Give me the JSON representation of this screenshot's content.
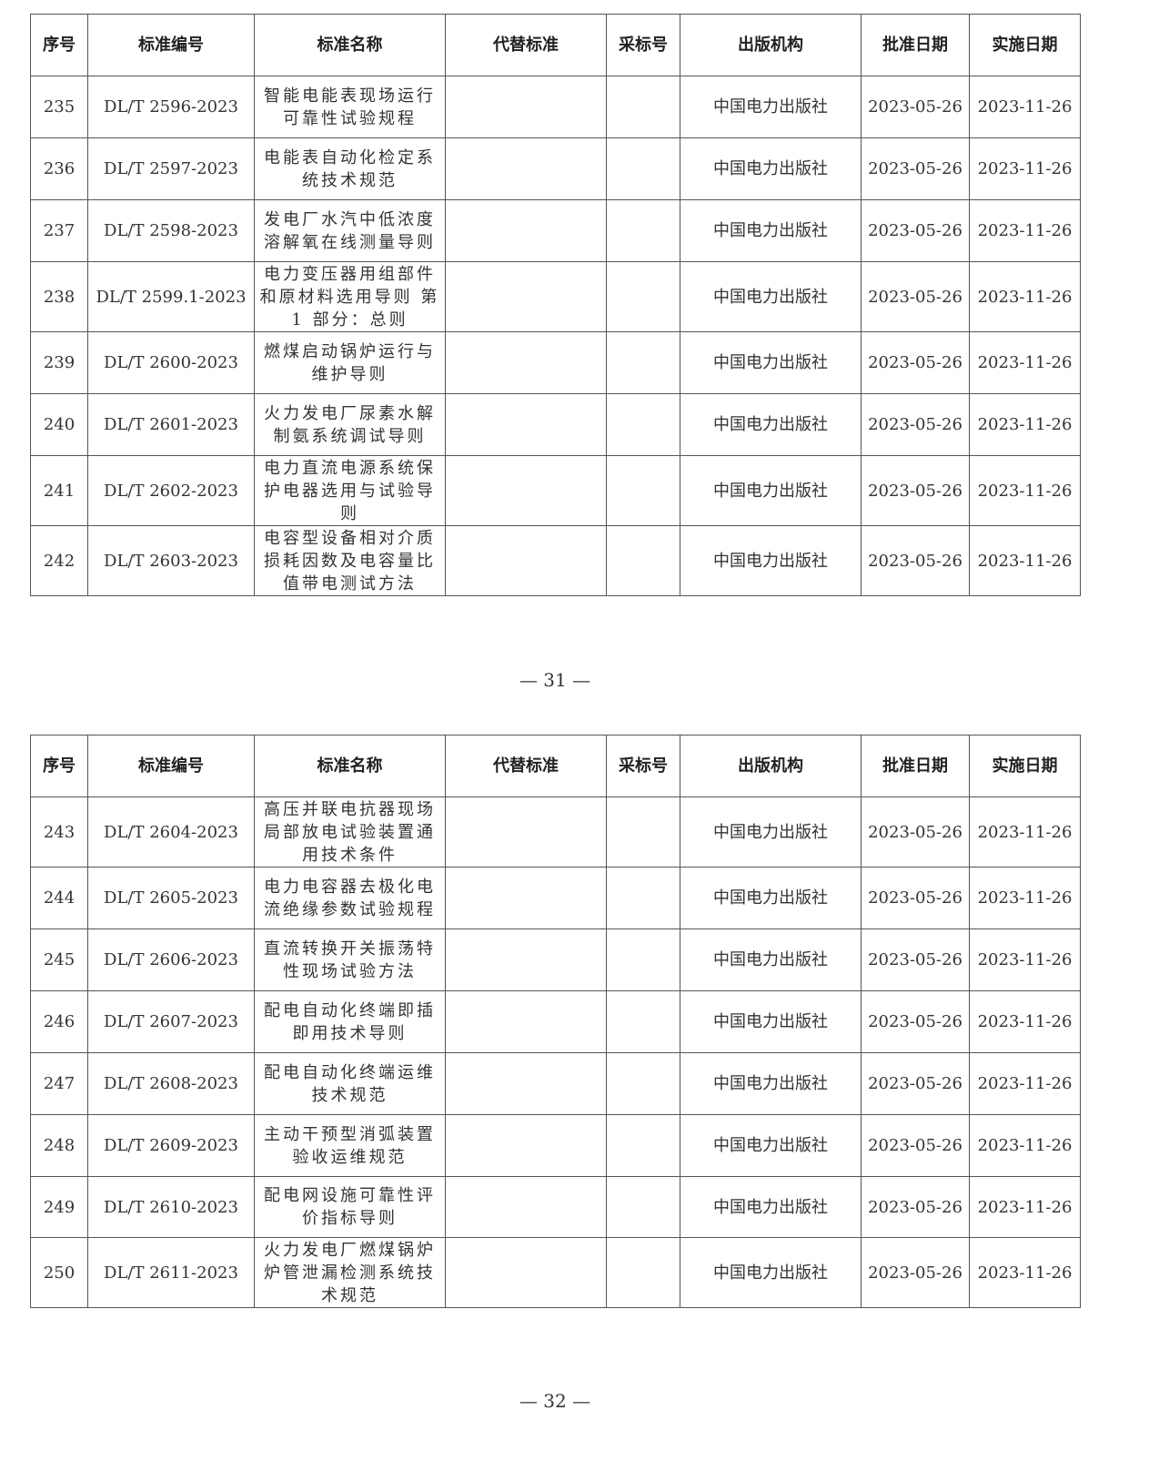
{
  "headers": [
    "序号",
    "标准编号",
    "标准名称",
    "代替标准",
    "采标号",
    "出版机构",
    "批准日期",
    "实施日期"
  ],
  "pages": [
    {
      "page_number": "— 31 —",
      "rows": [
        {
          "no": "235",
          "code": "DL/T 2596-2023",
          "name": "智能电能表现场运行\n可靠性试验规程",
          "replaces": "",
          "adopted": "",
          "publisher": "中国电力出版社",
          "approved": "2023-05-26",
          "effective": "2023-11-26"
        },
        {
          "no": "236",
          "code": "DL/T 2597-2023",
          "name": "电能表自动化检定系\n统技术规范",
          "replaces": "",
          "adopted": "",
          "publisher": "中国电力出版社",
          "approved": "2023-05-26",
          "effective": "2023-11-26"
        },
        {
          "no": "237",
          "code": "DL/T 2598-2023",
          "name": "发电厂水汽中低浓度\n溶解氧在线测量导则",
          "replaces": "",
          "adopted": "",
          "publisher": "中国电力出版社",
          "approved": "2023-05-26",
          "effective": "2023-11-26"
        },
        {
          "no": "238",
          "code": "DL/T 2599.1-2023",
          "name": "电力变压器用组部件\n和原材料选用导则 第\n1 部分：总则",
          "replaces": "",
          "adopted": "",
          "publisher": "中国电力出版社",
          "approved": "2023-05-26",
          "effective": "2023-11-26"
        },
        {
          "no": "239",
          "code": "DL/T 2600-2023",
          "name": "燃煤启动锅炉运行与\n维护导则",
          "replaces": "",
          "adopted": "",
          "publisher": "中国电力出版社",
          "approved": "2023-05-26",
          "effective": "2023-11-26"
        },
        {
          "no": "240",
          "code": "DL/T 2601-2023",
          "name": "火力发电厂尿素水解\n制氨系统调试导则",
          "replaces": "",
          "adopted": "",
          "publisher": "中国电力出版社",
          "approved": "2023-05-26",
          "effective": "2023-11-26"
        },
        {
          "no": "241",
          "code": "DL/T 2602-2023",
          "name": "电力直流电源系统保\n护电器选用与试验导\n则",
          "replaces": "",
          "adopted": "",
          "publisher": "中国电力出版社",
          "approved": "2023-05-26",
          "effective": "2023-11-26"
        },
        {
          "no": "242",
          "code": "DL/T 2603-2023",
          "name": "电容型设备相对介质\n损耗因数及电容量比\n值带电测试方法",
          "replaces": "",
          "adopted": "",
          "publisher": "中国电力出版社",
          "approved": "2023-05-26",
          "effective": "2023-11-26"
        }
      ]
    },
    {
      "page_number": "— 32 —",
      "rows": [
        {
          "no": "243",
          "code": "DL/T 2604-2023",
          "name": "高压并联电抗器现场\n局部放电试验装置通\n用技术条件",
          "replaces": "",
          "adopted": "",
          "publisher": "中国电力出版社",
          "approved": "2023-05-26",
          "effective": "2023-11-26"
        },
        {
          "no": "244",
          "code": "DL/T 2605-2023",
          "name": "电力电容器去极化电\n流绝缘参数试验规程",
          "replaces": "",
          "adopted": "",
          "publisher": "中国电力出版社",
          "approved": "2023-05-26",
          "effective": "2023-11-26"
        },
        {
          "no": "245",
          "code": "DL/T 2606-2023",
          "name": "直流转换开关振荡特\n性现场试验方法",
          "replaces": "",
          "adopted": "",
          "publisher": "中国电力出版社",
          "approved": "2023-05-26",
          "effective": "2023-11-26"
        },
        {
          "no": "246",
          "code": "DL/T 2607-2023",
          "name": "配电自动化终端即插\n即用技术导则",
          "replaces": "",
          "adopted": "",
          "publisher": "中国电力出版社",
          "approved": "2023-05-26",
          "effective": "2023-11-26"
        },
        {
          "no": "247",
          "code": "DL/T 2608-2023",
          "name": "配电自动化终端运维\n技术规范",
          "replaces": "",
          "adopted": "",
          "publisher": "中国电力出版社",
          "approved": "2023-05-26",
          "effective": "2023-11-26"
        },
        {
          "no": "248",
          "code": "DL/T 2609-2023",
          "name": "主动干预型消弧装置\n验收运维规范",
          "replaces": "",
          "adopted": "",
          "publisher": "中国电力出版社",
          "approved": "2023-05-26",
          "effective": "2023-11-26"
        },
        {
          "no": "249",
          "code": "DL/T 2610-2023",
          "name": "配电网设施可靠性评\n价指标导则",
          "replaces": "",
          "adopted": "",
          "publisher": "中国电力出版社",
          "approved": "2023-05-26",
          "effective": "2023-11-26"
        },
        {
          "no": "250",
          "code": "DL/T 2611-2023",
          "name": "火力发电厂燃煤锅炉\n炉管泄漏检测系统技\n术规范",
          "replaces": "",
          "adopted": "",
          "publisher": "中国电力出版社",
          "approved": "2023-05-26",
          "effective": "2023-11-26"
        }
      ]
    }
  ]
}
